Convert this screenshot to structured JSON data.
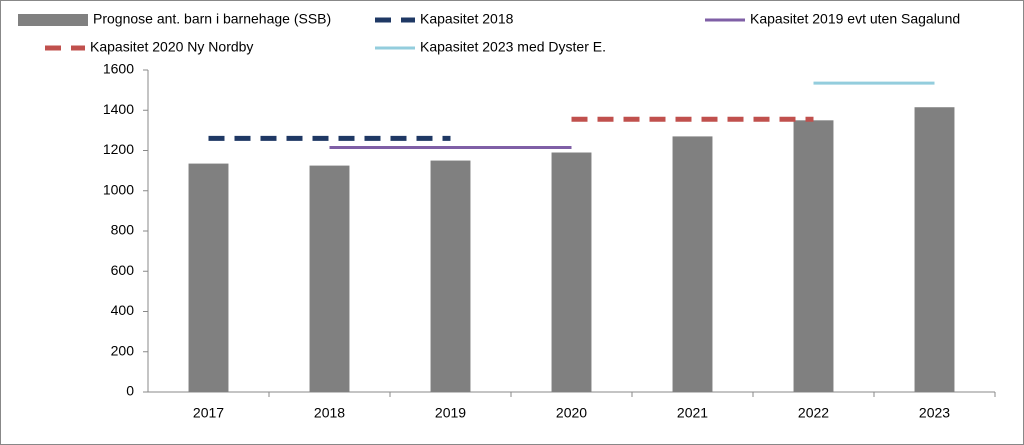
{
  "chart_data": {
    "type": "bar",
    "categories": [
      "2017",
      "2018",
      "2019",
      "2020",
      "2021",
      "2022",
      "2023"
    ],
    "series": [
      {
        "name": "Prognose ant. barn i barnehage (SSB)",
        "type": "bar",
        "color": "#808080",
        "values": [
          1135,
          1125,
          1150,
          1190,
          1270,
          1350,
          1415
        ]
      },
      {
        "name": "Kapasitet 2018",
        "type": "line",
        "dashed": true,
        "color": "#1f3864",
        "values": [
          1260,
          1260,
          1260,
          null,
          null,
          null,
          null
        ]
      },
      {
        "name": "Kapasitet 2019 evt uten Sagalund",
        "type": "line",
        "dashed": false,
        "color": "#7f5fa6",
        "values": [
          null,
          1215,
          1215,
          1215,
          null,
          null,
          null
        ]
      },
      {
        "name": "Kapasitet 2020 Ny Nordby",
        "type": "line",
        "dashed": true,
        "color": "#c0504d",
        "values": [
          null,
          null,
          null,
          1355,
          1355,
          1355,
          null
        ]
      },
      {
        "name": "Kapasitet 2023 med Dyster E.",
        "type": "line",
        "dashed": false,
        "color": "#93cddd",
        "values": [
          null,
          null,
          null,
          null,
          null,
          1535,
          1535
        ]
      }
    ],
    "ylim": [
      0,
      1600
    ],
    "yticks": [
      0,
      200,
      400,
      600,
      800,
      1000,
      1200,
      1400,
      1600
    ],
    "grid": false
  }
}
